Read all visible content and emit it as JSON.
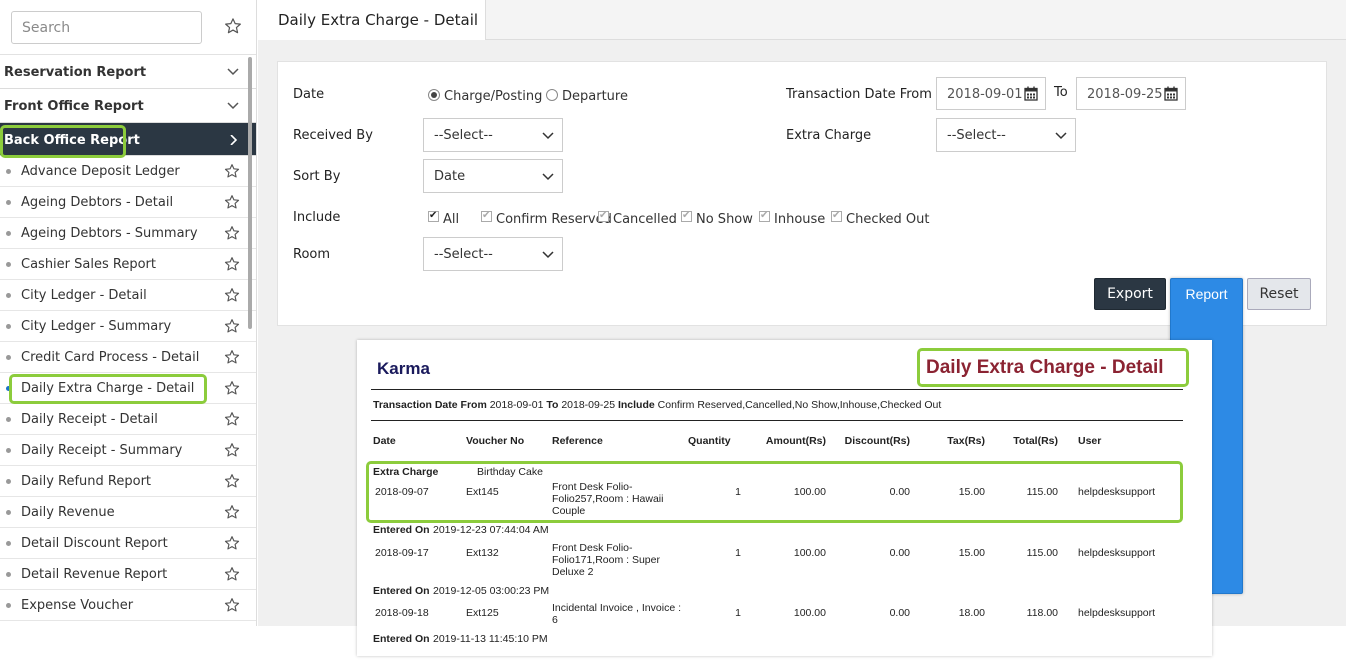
{
  "sidebar": {
    "search_placeholder": "Search",
    "sections": [
      {
        "label": "Reservation Report"
      },
      {
        "label": "Front Office Report"
      },
      {
        "label": "Back Office Report"
      }
    ],
    "items": [
      {
        "label": "Advance Deposit Ledger"
      },
      {
        "label": "Ageing Debtors - Detail"
      },
      {
        "label": "Ageing Debtors - Summary"
      },
      {
        "label": "Cashier Sales Report"
      },
      {
        "label": "City Ledger - Detail"
      },
      {
        "label": "City Ledger - Summary"
      },
      {
        "label": "Credit Card Process - Detail"
      },
      {
        "label": "Daily Extra Charge - Detail"
      },
      {
        "label": "Daily Receipt - Detail"
      },
      {
        "label": "Daily Receipt - Summary"
      },
      {
        "label": "Daily Refund Report"
      },
      {
        "label": "Daily Revenue"
      },
      {
        "label": "Detail Discount Report"
      },
      {
        "label": "Detail Revenue Report"
      },
      {
        "label": "Expense Voucher"
      }
    ]
  },
  "tab": {
    "title": "Daily Extra Charge - Detail"
  },
  "filters": {
    "date_label": "Date",
    "date_options": [
      "Charge/Posting",
      "Departure"
    ],
    "date_selected": "Charge/Posting",
    "received_by_label": "Received By",
    "received_by_value": "--Select--",
    "sort_by_label": "Sort By",
    "sort_by_value": "Date",
    "include_label": "Include",
    "include_options": [
      "All",
      "Confirm Reserved",
      "Cancelled",
      "No Show",
      "Inhouse",
      "Checked Out"
    ],
    "room_label": "Room",
    "room_value": "--Select--",
    "txn_from_label": "Transaction Date From",
    "txn_from_value": "2018-09-01",
    "to_label": "To",
    "txn_to_value": "2018-09-25",
    "extra_charge_label": "Extra Charge",
    "extra_charge_value": "--Select--"
  },
  "buttons": {
    "export": "Export",
    "report": "Report",
    "reset": "Reset"
  },
  "report": {
    "company": "Karma",
    "title": "Daily Extra Charge - Detail",
    "sub_from_label": "Transaction Date From",
    "sub_from": "2018-09-01",
    "sub_to_label": "To",
    "sub_to": "2018-09-25",
    "sub_include_label": "Include",
    "sub_include": "Confirm Reserved,Cancelled,No Show,Inhouse,Checked Out",
    "columns": [
      "Date",
      "Voucher No",
      "Reference",
      "Quantity",
      "Amount(Rs)",
      "Discount(Rs)",
      "Tax(Rs)",
      "Total(Rs)",
      "User"
    ],
    "group_label": "Extra Charge",
    "group_name": "Birthday Cake",
    "entered_on_label": "Entered On",
    "rows": [
      {
        "date": "2018-09-07",
        "voucher": "Ext145",
        "reference": [
          "Front Desk Folio-",
          "Folio257,Room : Hawaii",
          "Couple"
        ],
        "qty": "1",
        "amount": "100.00",
        "discount": "0.00",
        "tax": "15.00",
        "total": "115.00",
        "user": "helpdesksupport",
        "entered_on": "2019-12-23 07:44:04 AM"
      },
      {
        "date": "2018-09-17",
        "voucher": "Ext132",
        "reference": [
          "Front Desk Folio-",
          "Folio171,Room : Super",
          "Deluxe 2"
        ],
        "qty": "1",
        "amount": "100.00",
        "discount": "0.00",
        "tax": "15.00",
        "total": "115.00",
        "user": "helpdesksupport",
        "entered_on": "2019-12-05 03:00:23 PM"
      },
      {
        "date": "2018-09-18",
        "voucher": "Ext125",
        "reference": [
          "Incidental Invoice , Invoice :",
          "6"
        ],
        "qty": "1",
        "amount": "100.00",
        "discount": "0.00",
        "tax": "18.00",
        "total": "118.00",
        "user": "helpdesksupport",
        "entered_on": "2019-11-13 11:45:10 PM"
      }
    ]
  },
  "colors": {
    "highlight": "#8ccc3c",
    "sidebar_active": "#2b3743",
    "report_title": "#8b2332",
    "primary": "#2d8ae5"
  }
}
